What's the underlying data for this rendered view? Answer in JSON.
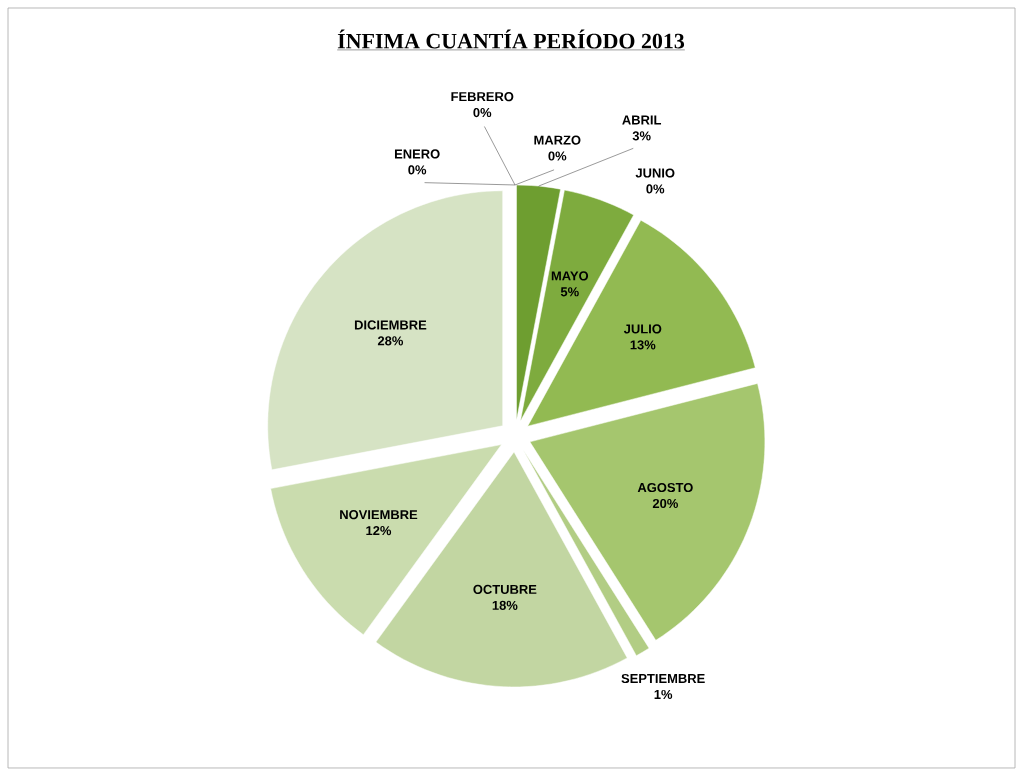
{
  "chart_data": {
    "type": "pie",
    "title": "ÍNFIMA CUANTÍA PERÍODO 2013",
    "categories": [
      "ENERO",
      "FEBRERO",
      "MARZO",
      "ABRIL",
      "MAYO",
      "JUNIO",
      "JULIO",
      "AGOSTO",
      "SEPTIEMBRE",
      "OCTUBRE",
      "NOVIEMBRE",
      "DICIEMBRE"
    ],
    "values": [
      0,
      0,
      0,
      3,
      5,
      0,
      13,
      20,
      1,
      18,
      12,
      28
    ],
    "value_labels": [
      "0%",
      "0%",
      "0%",
      "3%",
      "5%",
      "0%",
      "13%",
      "20%",
      "1%",
      "18%",
      "12%",
      "28%"
    ],
    "colors": [
      "#5e8e22",
      "#5e8e22",
      "#6a9a2c",
      "#6e9e30",
      "#7eab3e",
      "#86b046",
      "#92ba52",
      "#a5c66e",
      "#b2cd84",
      "#c2d6a2",
      "#cadcae",
      "#d6e3c4"
    ]
  }
}
